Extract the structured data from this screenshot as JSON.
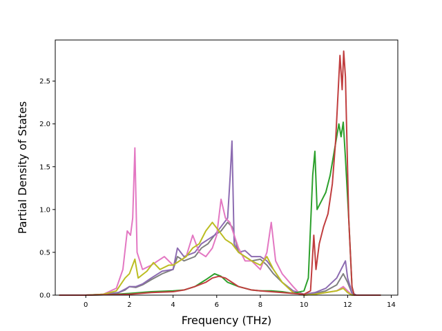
{
  "chart_data": {
    "type": "line",
    "title": "",
    "xlabel": "Frequency (THz)",
    "ylabel": "Partial Density of States",
    "xlim": [
      -1.4,
      14.3
    ],
    "ylim": [
      0,
      2.98
    ],
    "x_ticks": [
      0,
      2,
      4,
      6,
      8,
      10,
      12,
      14
    ],
    "x_tick_labels": [
      "0",
      "2",
      "4",
      "6",
      "8",
      "10",
      "12",
      "14"
    ],
    "y_ticks": [
      0,
      0.5,
      1.0,
      1.5,
      2.0,
      2.5
    ],
    "y_tick_labels": [
      "0.0",
      "0.5",
      "1.0",
      "1.5",
      "2.0",
      "2.5"
    ],
    "grid": false,
    "legend": "none",
    "series": [
      {
        "color": "#7f7f7f",
        "points": [
          [
            -1.2,
            0
          ],
          [
            0,
            0
          ],
          [
            0.8,
            0.01
          ],
          [
            1.5,
            0.03
          ],
          [
            1.8,
            0.06
          ],
          [
            2.0,
            0.1
          ],
          [
            2.3,
            0.09
          ],
          [
            2.6,
            0.12
          ],
          [
            3.0,
            0.18
          ],
          [
            3.5,
            0.25
          ],
          [
            4.0,
            0.3
          ],
          [
            4.2,
            0.45
          ],
          [
            4.5,
            0.4
          ],
          [
            5.0,
            0.45
          ],
          [
            5.3,
            0.55
          ],
          [
            5.6,
            0.6
          ],
          [
            5.9,
            0.7
          ],
          [
            6.2,
            0.75
          ],
          [
            6.5,
            0.85
          ],
          [
            6.7,
            0.8
          ],
          [
            7.0,
            0.5
          ],
          [
            7.3,
            0.45
          ],
          [
            7.6,
            0.4
          ],
          [
            8.0,
            0.42
          ],
          [
            8.3,
            0.35
          ],
          [
            8.6,
            0.25
          ],
          [
            9.0,
            0.15
          ],
          [
            9.5,
            0.05
          ],
          [
            10.0,
            0.01
          ],
          [
            10.5,
            0.02
          ],
          [
            11.0,
            0.05
          ],
          [
            11.5,
            0.12
          ],
          [
            11.8,
            0.25
          ],
          [
            12.0,
            0.15
          ],
          [
            12.2,
            0.02
          ],
          [
            12.4,
            0
          ],
          [
            13.5,
            0
          ]
        ]
      },
      {
        "color": "#8c6bb1",
        "points": [
          [
            -1.2,
            0
          ],
          [
            0,
            0
          ],
          [
            0.8,
            0.01
          ],
          [
            1.5,
            0.03
          ],
          [
            1.8,
            0.07
          ],
          [
            2.0,
            0.1
          ],
          [
            2.3,
            0.1
          ],
          [
            2.6,
            0.13
          ],
          [
            3.0,
            0.2
          ],
          [
            3.5,
            0.28
          ],
          [
            4.0,
            0.3
          ],
          [
            4.2,
            0.55
          ],
          [
            4.5,
            0.45
          ],
          [
            5.0,
            0.5
          ],
          [
            5.3,
            0.6
          ],
          [
            5.6,
            0.65
          ],
          [
            5.9,
            0.7
          ],
          [
            6.2,
            0.8
          ],
          [
            6.5,
            0.9
          ],
          [
            6.62,
            1.4
          ],
          [
            6.7,
            1.8
          ],
          [
            6.8,
            0.6
          ],
          [
            7.0,
            0.5
          ],
          [
            7.3,
            0.52
          ],
          [
            7.6,
            0.45
          ],
          [
            8.0,
            0.45
          ],
          [
            8.3,
            0.4
          ],
          [
            8.6,
            0.3
          ],
          [
            9.0,
            0.15
          ],
          [
            9.5,
            0.05
          ],
          [
            10.0,
            0.01
          ],
          [
            10.5,
            0.03
          ],
          [
            11.0,
            0.08
          ],
          [
            11.5,
            0.2
          ],
          [
            11.8,
            0.35
          ],
          [
            11.9,
            0.4
          ],
          [
            12.0,
            0.2
          ],
          [
            12.2,
            0.03
          ],
          [
            12.4,
            0
          ],
          [
            13.5,
            0
          ]
        ]
      },
      {
        "color": "#e377c2",
        "points": [
          [
            -1.2,
            0
          ],
          [
            0,
            0
          ],
          [
            0.8,
            0.01
          ],
          [
            1.4,
            0.08
          ],
          [
            1.7,
            0.3
          ],
          [
            1.9,
            0.75
          ],
          [
            2.05,
            0.7
          ],
          [
            2.15,
            0.9
          ],
          [
            2.25,
            1.72
          ],
          [
            2.35,
            0.5
          ],
          [
            2.6,
            0.3
          ],
          [
            3.0,
            0.35
          ],
          [
            3.3,
            0.4
          ],
          [
            3.6,
            0.45
          ],
          [
            4.0,
            0.35
          ],
          [
            4.3,
            0.4
          ],
          [
            4.6,
            0.45
          ],
          [
            4.9,
            0.7
          ],
          [
            5.2,
            0.5
          ],
          [
            5.5,
            0.45
          ],
          [
            5.8,
            0.55
          ],
          [
            6.0,
            0.7
          ],
          [
            6.2,
            1.12
          ],
          [
            6.4,
            0.9
          ],
          [
            6.6,
            0.85
          ],
          [
            6.8,
            0.7
          ],
          [
            7.0,
            0.55
          ],
          [
            7.3,
            0.4
          ],
          [
            7.6,
            0.4
          ],
          [
            8.0,
            0.3
          ],
          [
            8.3,
            0.5
          ],
          [
            8.5,
            0.85
          ],
          [
            8.7,
            0.4
          ],
          [
            9.0,
            0.25
          ],
          [
            9.5,
            0.1
          ],
          [
            9.8,
            0.02
          ],
          [
            10.0,
            0
          ],
          [
            10.5,
            0.01
          ],
          [
            11.0,
            0.03
          ],
          [
            11.5,
            0.05
          ],
          [
            11.8,
            0.1
          ],
          [
            12.0,
            0.05
          ],
          [
            12.2,
            0
          ],
          [
            13.5,
            0
          ]
        ]
      },
      {
        "color": "#bcbd22",
        "points": [
          [
            -1.2,
            0
          ],
          [
            0,
            0
          ],
          [
            0.8,
            0.01
          ],
          [
            1.4,
            0.05
          ],
          [
            1.8,
            0.2
          ],
          [
            2.0,
            0.25
          ],
          [
            2.25,
            0.42
          ],
          [
            2.4,
            0.2
          ],
          [
            2.8,
            0.28
          ],
          [
            3.1,
            0.38
          ],
          [
            3.4,
            0.3
          ],
          [
            3.8,
            0.35
          ],
          [
            4.0,
            0.35
          ],
          [
            4.3,
            0.4
          ],
          [
            4.6,
            0.45
          ],
          [
            4.9,
            0.55
          ],
          [
            5.2,
            0.6
          ],
          [
            5.5,
            0.75
          ],
          [
            5.8,
            0.85
          ],
          [
            6.1,
            0.75
          ],
          [
            6.4,
            0.65
          ],
          [
            6.7,
            0.6
          ],
          [
            7.0,
            0.5
          ],
          [
            7.3,
            0.45
          ],
          [
            7.6,
            0.4
          ],
          [
            8.0,
            0.35
          ],
          [
            8.3,
            0.45
          ],
          [
            8.6,
            0.3
          ],
          [
            9.0,
            0.15
          ],
          [
            9.5,
            0.03
          ],
          [
            10.0,
            0
          ],
          [
            10.5,
            0.01
          ],
          [
            11.0,
            0.03
          ],
          [
            11.5,
            0.05
          ],
          [
            11.8,
            0.08
          ],
          [
            12.0,
            0.03
          ],
          [
            12.2,
            0
          ],
          [
            13.5,
            0
          ]
        ]
      },
      {
        "color": "#2ca02c",
        "points": [
          [
            -1.2,
            0
          ],
          [
            0,
            0
          ],
          [
            1.0,
            0.005
          ],
          [
            2.0,
            0.02
          ],
          [
            3.0,
            0.04
          ],
          [
            4.0,
            0.05
          ],
          [
            4.5,
            0.06
          ],
          [
            5.0,
            0.1
          ],
          [
            5.5,
            0.18
          ],
          [
            5.9,
            0.25
          ],
          [
            6.2,
            0.22
          ],
          [
            6.5,
            0.15
          ],
          [
            6.8,
            0.12
          ],
          [
            7.0,
            0.1
          ],
          [
            7.3,
            0.08
          ],
          [
            7.6,
            0.06
          ],
          [
            8.0,
            0.05
          ],
          [
            8.5,
            0.05
          ],
          [
            9.0,
            0.04
          ],
          [
            9.5,
            0.02
          ],
          [
            10.0,
            0.05
          ],
          [
            10.2,
            0.2
          ],
          [
            10.4,
            1.4
          ],
          [
            10.5,
            1.68
          ],
          [
            10.6,
            1.0
          ],
          [
            10.8,
            1.1
          ],
          [
            11.0,
            1.2
          ],
          [
            11.2,
            1.4
          ],
          [
            11.4,
            1.7
          ],
          [
            11.6,
            2.0
          ],
          [
            11.7,
            1.85
          ],
          [
            11.8,
            2.02
          ],
          [
            11.9,
            1.6
          ],
          [
            12.05,
            0.9
          ],
          [
            12.2,
            0.1
          ],
          [
            12.3,
            0
          ],
          [
            13.5,
            0
          ]
        ]
      },
      {
        "color": "#c03d3e",
        "points": [
          [
            -1.2,
            0
          ],
          [
            0,
            0
          ],
          [
            1.0,
            0.005
          ],
          [
            2.0,
            0.01
          ],
          [
            3.0,
            0.03
          ],
          [
            4.0,
            0.04
          ],
          [
            4.5,
            0.06
          ],
          [
            5.0,
            0.1
          ],
          [
            5.5,
            0.15
          ],
          [
            5.8,
            0.2
          ],
          [
            6.1,
            0.22
          ],
          [
            6.4,
            0.2
          ],
          [
            6.7,
            0.15
          ],
          [
            7.0,
            0.1
          ],
          [
            7.3,
            0.08
          ],
          [
            7.6,
            0.06
          ],
          [
            8.0,
            0.05
          ],
          [
            8.5,
            0.04
          ],
          [
            9.0,
            0.03
          ],
          [
            9.5,
            0.02
          ],
          [
            10.0,
            0.01
          ],
          [
            10.3,
            0.05
          ],
          [
            10.45,
            0.7
          ],
          [
            10.55,
            0.3
          ],
          [
            10.7,
            0.6
          ],
          [
            10.9,
            0.8
          ],
          [
            11.1,
            0.95
          ],
          [
            11.3,
            1.3
          ],
          [
            11.45,
            1.8
          ],
          [
            11.55,
            2.3
          ],
          [
            11.65,
            2.8
          ],
          [
            11.75,
            2.4
          ],
          [
            11.82,
            2.85
          ],
          [
            11.9,
            2.55
          ],
          [
            12.05,
            0.9
          ],
          [
            12.2,
            0.1
          ],
          [
            12.3,
            0
          ],
          [
            13.5,
            0
          ]
        ]
      }
    ]
  }
}
